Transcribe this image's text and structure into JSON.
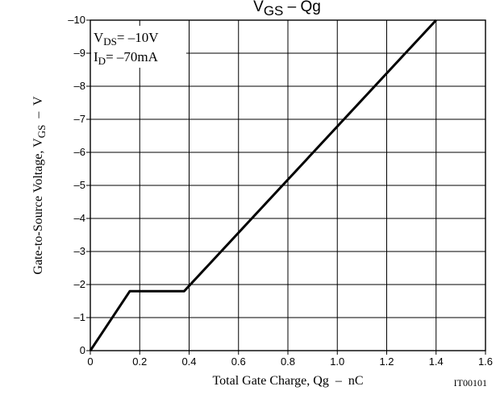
{
  "chart_data": {
    "type": "line",
    "title": {
      "main": "V",
      "sub": "GS",
      "rest": " – Qg"
    },
    "xlabel": "Total Gate Charge, Qg  –  nC",
    "ylabel": {
      "main": "Gate-to-Source Voltage, V",
      "sub": "GS",
      "rest": "  –  V"
    },
    "code": "IT00101",
    "conditions": [
      {
        "main": "V",
        "sub": "DS",
        "rest": "= –10V"
      },
      {
        "main": "I",
        "sub": "D",
        "rest": "= –70mA"
      }
    ],
    "xlim": [
      0,
      1.6
    ],
    "ylim": [
      0,
      -10
    ],
    "xticks": [
      0,
      0.2,
      0.4,
      0.6,
      0.8,
      1.0,
      1.2,
      1.4,
      1.6
    ],
    "xtick_labels": [
      "0",
      "0.2",
      "0.4",
      "0.6",
      "0.8",
      "1.0",
      "1.2",
      "1.4",
      "1.6"
    ],
    "yticks": [
      0,
      -1,
      -2,
      -3,
      -4,
      -5,
      -6,
      -7,
      -8,
      -9,
      -10
    ],
    "ytick_labels": [
      "0",
      "–1",
      "–2",
      "–3",
      "–4",
      "–5",
      "–6",
      "–7",
      "–8",
      "–9",
      "–10"
    ],
    "grid": true,
    "series": [
      {
        "x": [
          0,
          0.16,
          0.38,
          1.4
        ],
        "y": [
          0,
          -1.8,
          -1.8,
          -10
        ]
      }
    ]
  }
}
